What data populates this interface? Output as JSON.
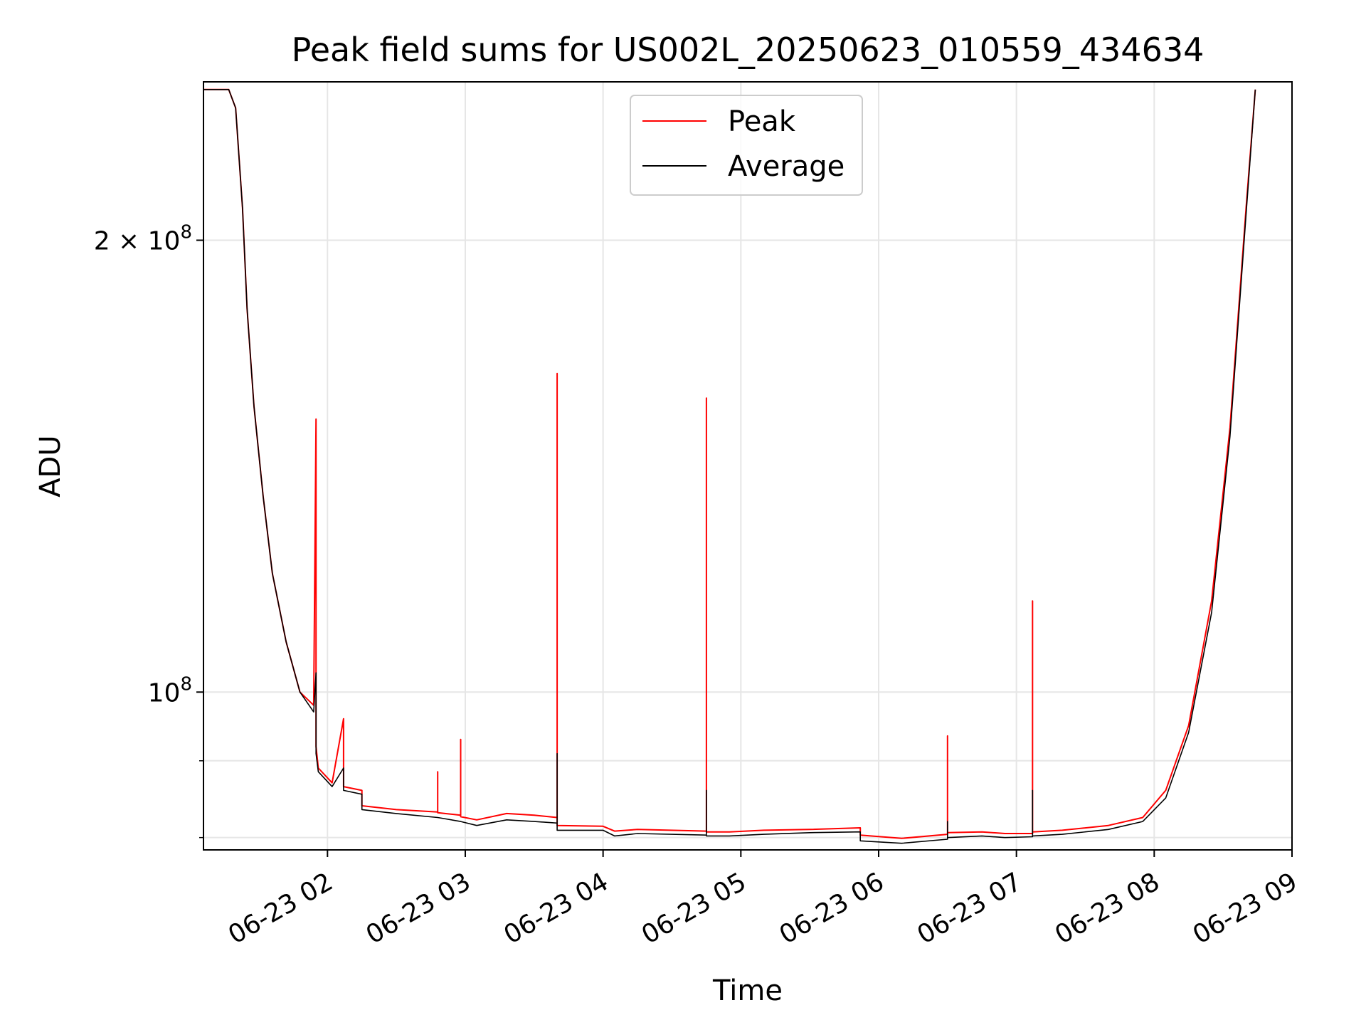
{
  "chart_data": {
    "type": "line",
    "title": "Peak field sums for US002L_20250623_010559_434634",
    "xlabel": "Time",
    "ylabel": "ADU",
    "y_scale": "log",
    "ylim": [
      78500000,
      255000000
    ],
    "xlim": [
      "06-23 01:06",
      "06-23 09:00"
    ],
    "grid": true,
    "legend_position": "upper-center",
    "x_ticks": [
      "06-23 02",
      "06-23 03",
      "06-23 04",
      "06-23 05",
      "06-23 06",
      "06-23 07",
      "06-23 08",
      "06-23 09"
    ],
    "y_ticks": [
      {
        "label_base": "2 × 10",
        "label_exp": "8",
        "value": 200000000
      },
      {
        "label_base": "10",
        "label_exp": "8",
        "value": 100000000
      }
    ],
    "x_tick_times": [
      "06-23 02:00",
      "06-23 03:00",
      "06-23 04:00",
      "06-23 05:00",
      "06-23 06:00",
      "06-23 07:00",
      "06-23 08:00",
      "06-23 09:00"
    ],
    "y_minor_ticks": [
      80000000,
      90000000
    ],
    "series": [
      {
        "name": "Peak",
        "color": "#ff0000",
        "x": [
          "06-23 01:06",
          "06-23 01:17",
          "06-23 01:20",
          "06-23 01:23",
          "06-23 01:25",
          "06-23 01:28",
          "06-23 01:32",
          "06-23 01:36",
          "06-23 01:42",
          "06-23 01:48",
          "06-23 01:54",
          "06-23 01:55",
          "06-23 01:55",
          "06-23 01:56",
          "06-23 02:02",
          "06-23 02:07",
          "06-23 02:07",
          "06-23 02:07",
          "06-23 02:15",
          "06-23 02:15",
          "06-23 02:30",
          "06-23 02:48",
          "06-23 02:48",
          "06-23 02:48",
          "06-23 02:58",
          "06-23 02:58",
          "06-23 02:58",
          "06-23 03:05",
          "06-23 03:18",
          "06-23 03:30",
          "06-23 03:40",
          "06-23 03:40",
          "06-23 03:40",
          "06-23 03:40",
          "06-23 04:00",
          "06-23 04:05",
          "06-23 04:15",
          "06-23 04:45",
          "06-23 04:45",
          "06-23 04:45",
          "06-23 04:55",
          "06-23 05:10",
          "06-23 05:30",
          "06-23 05:52",
          "06-23 05:52",
          "06-23 06:10",
          "06-23 06:30",
          "06-23 06:30",
          "06-23 06:30",
          "06-23 06:45",
          "06-23 06:55",
          "06-23 07:07",
          "06-23 07:07",
          "06-23 07:07",
          "06-23 07:20",
          "06-23 07:40",
          "06-23 07:55",
          "06-23 08:05",
          "06-23 08:15",
          "06-23 08:25",
          "06-23 08:33",
          "06-23 08:40",
          "06-23 08:44"
        ],
        "y": [
          252000000,
          252000000,
          245000000,
          210000000,
          180000000,
          155000000,
          135000000,
          120000000,
          108000000,
          100000000,
          98000000,
          152000000,
          92000000,
          89000000,
          87000000,
          96000000,
          87500000,
          86500000,
          86000000,
          84000000,
          83500000,
          83200000,
          88500000,
          83100000,
          82800000,
          93000000,
          82600000,
          82200000,
          83000000,
          82800000,
          82500000,
          163000000,
          81900000,
          81500000,
          81400000,
          80800000,
          81000000,
          80800000,
          157000000,
          80700000,
          80700000,
          80900000,
          81000000,
          81200000,
          80300000,
          79900000,
          80400000,
          93500000,
          80600000,
          80700000,
          80500000,
          80500000,
          115000000,
          80700000,
          80900000,
          81500000,
          82500000,
          86000000,
          95000000,
          115000000,
          150000000,
          210000000,
          252000000
        ]
      },
      {
        "name": "Average",
        "color": "#000000",
        "x": [
          "06-23 01:06",
          "06-23 01:17",
          "06-23 01:20",
          "06-23 01:23",
          "06-23 01:25",
          "06-23 01:28",
          "06-23 01:32",
          "06-23 01:36",
          "06-23 01:42",
          "06-23 01:48",
          "06-23 01:54",
          "06-23 01:55",
          "06-23 01:55",
          "06-23 01:56",
          "06-23 02:02",
          "06-23 02:07",
          "06-23 02:07",
          "06-23 02:07",
          "06-23 02:15",
          "06-23 02:15",
          "06-23 02:30",
          "06-23 02:48",
          "06-23 02:58",
          "06-23 03:05",
          "06-23 03:18",
          "06-23 03:30",
          "06-23 03:40",
          "06-23 03:40",
          "06-23 03:40",
          "06-23 03:40",
          "06-23 04:00",
          "06-23 04:05",
          "06-23 04:15",
          "06-23 04:45",
          "06-23 04:45",
          "06-23 04:45",
          "06-23 04:55",
          "06-23 05:10",
          "06-23 05:30",
          "06-23 05:52",
          "06-23 05:52",
          "06-23 06:10",
          "06-23 06:30",
          "06-23 06:30",
          "06-23 06:30",
          "06-23 06:45",
          "06-23 06:55",
          "06-23 07:07",
          "06-23 07:07",
          "06-23 07:07",
          "06-23 07:20",
          "06-23 07:40",
          "06-23 07:55",
          "06-23 08:05",
          "06-23 08:15",
          "06-23 08:25",
          "06-23 08:33",
          "06-23 08:40",
          "06-23 08:44"
        ],
        "y": [
          252000000,
          252000000,
          245000000,
          210000000,
          180000000,
          155000000,
          135000000,
          120000000,
          108000000,
          100000000,
          97000000,
          103000000,
          91000000,
          88500000,
          86500000,
          89000000,
          86500000,
          86000000,
          85500000,
          83500000,
          83000000,
          82500000,
          82000000,
          81500000,
          82200000,
          82000000,
          81800000,
          91000000,
          81300000,
          80900000,
          80900000,
          80200000,
          80500000,
          80300000,
          86000000,
          80200000,
          80200000,
          80400000,
          80600000,
          80700000,
          79600000,
          79300000,
          79800000,
          82000000,
          80000000,
          80200000,
          80000000,
          80100000,
          86000000,
          80200000,
          80400000,
          81000000,
          82000000,
          85000000,
          94000000,
          113000000,
          148000000,
          208000000,
          252000000
        ]
      }
    ]
  }
}
